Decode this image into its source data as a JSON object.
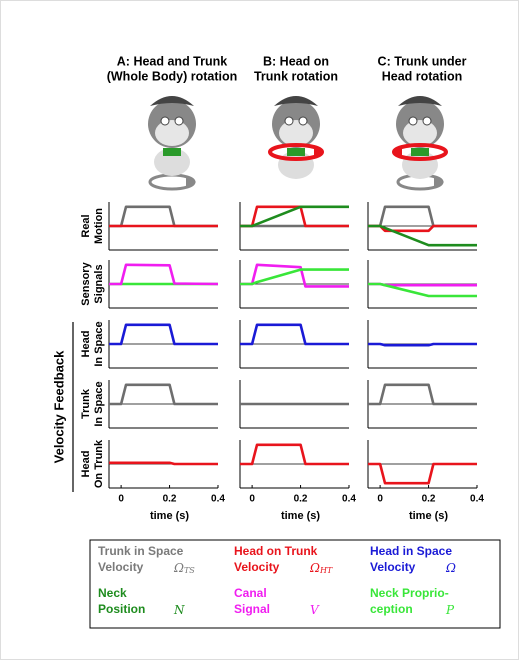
{
  "column_titles": [
    [
      "A: Head and Trunk",
      "(Whole Body) rotation"
    ],
    [
      "B: Head on",
      "Trunk rotation"
    ],
    [
      "C: Trunk under",
      "Head rotation"
    ]
  ],
  "row_labels": [
    [
      "Real",
      "Motion"
    ],
    [
      "Sensory",
      "Signals"
    ],
    [
      "Head",
      "In Space"
    ],
    [
      "Trunk",
      "In Space"
    ],
    [
      "Head",
      "On Trunk"
    ]
  ],
  "group_label": "Velocity Feedback",
  "chart_data": [
    {
      "type": "line",
      "x": [
        -0.05,
        0,
        0.02,
        0.2,
        0.22,
        0.4
      ],
      "xlim": [
        -0.05,
        0.4
      ],
      "ylim": [
        -1,
        1
      ],
      "series": [
        {
          "color": "#6e6e6e",
          "values": [
            0,
            0,
            0.8,
            0.8,
            0,
            0
          ]
        },
        {
          "color": "#e8141c",
          "values": [
            0,
            0,
            0,
            0,
            0,
            0
          ]
        }
      ]
    },
    {
      "type": "line",
      "x": [
        -0.05,
        0,
        0.02,
        0.2,
        0.22,
        0.4
      ],
      "xlim": [
        -0.05,
        0.4
      ],
      "ylim": [
        -1,
        1
      ],
      "series": [
        {
          "color": "#6e6e6e",
          "values": [
            0,
            0,
            0,
            0,
            0,
            0
          ]
        },
        {
          "color": "#e8141c",
          "values": [
            0,
            0,
            0.8,
            0.8,
            0,
            0
          ]
        },
        {
          "color": "#1e8c1e",
          "values": [
            0,
            0,
            0.08,
            0.8,
            0.8,
            0.8
          ]
        }
      ]
    },
    {
      "type": "line",
      "x": [
        -0.05,
        0,
        0.02,
        0.2,
        0.22,
        0.4
      ],
      "xlim": [
        -0.05,
        0.4
      ],
      "ylim": [
        -1,
        1
      ],
      "series": [
        {
          "color": "#6e6e6e",
          "values": [
            0,
            0,
            0.8,
            0.8,
            0,
            0
          ]
        },
        {
          "color": "#e8141c",
          "values": [
            0,
            0,
            -0.2,
            -0.2,
            0,
            0
          ]
        },
        {
          "color": "#1e8c1e",
          "values": [
            0,
            0,
            -0.08,
            -0.8,
            -0.8,
            -0.8
          ]
        }
      ]
    },
    {
      "type": "line",
      "x": [
        -0.05,
        0,
        0.02,
        0.2,
        0.22,
        0.4
      ],
      "xlim": [
        -0.05,
        0.4
      ],
      "ylim": [
        -1,
        1
      ],
      "series": [
        {
          "color": "#39e639",
          "values": [
            0,
            0,
            0,
            0,
            0,
            0
          ]
        },
        {
          "color": "#f01ef0",
          "values": [
            0,
            0,
            0.8,
            0.78,
            0.02,
            0
          ]
        }
      ]
    },
    {
      "type": "line",
      "x": [
        -0.05,
        0,
        0.02,
        0.2,
        0.22,
        0.4
      ],
      "xlim": [
        -0.05,
        0.4
      ],
      "ylim": [
        -1,
        1
      ],
      "series": [
        {
          "color": "#f01ef0",
          "values": [
            0,
            0,
            0.8,
            0.7,
            -0.1,
            -0.1
          ]
        },
        {
          "color": "#39e639",
          "values": [
            0,
            0,
            0.08,
            0.6,
            0.6,
            0.6
          ]
        }
      ]
    },
    {
      "type": "line",
      "x": [
        -0.05,
        0,
        0.02,
        0.2,
        0.22,
        0.4
      ],
      "xlim": [
        -0.05,
        0.4
      ],
      "ylim": [
        -1,
        1
      ],
      "series": [
        {
          "color": "#f01ef0",
          "values": [
            0,
            0,
            -0.05,
            -0.05,
            -0.05,
            -0.05
          ]
        },
        {
          "color": "#39e639",
          "values": [
            0,
            0,
            -0.05,
            -0.5,
            -0.5,
            -0.5
          ]
        }
      ]
    },
    {
      "type": "line",
      "x": [
        -0.05,
        0,
        0.02,
        0.2,
        0.22,
        0.4
      ],
      "xlim": [
        -0.05,
        0.4
      ],
      "ylim": [
        -1,
        1
      ],
      "series": [
        {
          "color": "#1a1ad6",
          "values": [
            0,
            0,
            0.8,
            0.8,
            0,
            0
          ]
        }
      ]
    },
    {
      "type": "line",
      "x": [
        -0.05,
        0,
        0.02,
        0.2,
        0.22,
        0.4
      ],
      "xlim": [
        -0.05,
        0.4
      ],
      "ylim": [
        -1,
        1
      ],
      "series": [
        {
          "color": "#1a1ad6",
          "values": [
            0,
            0,
            0.8,
            0.8,
            0,
            0
          ]
        }
      ]
    },
    {
      "type": "line",
      "x": [
        -0.05,
        0,
        0.02,
        0.2,
        0.22,
        0.4
      ],
      "xlim": [
        -0.05,
        0.4
      ],
      "ylim": [
        -1,
        1
      ],
      "series": [
        {
          "color": "#1a1ad6",
          "values": [
            0,
            0,
            -0.05,
            -0.05,
            0,
            0
          ]
        }
      ]
    },
    {
      "type": "line",
      "x": [
        -0.05,
        0,
        0.02,
        0.2,
        0.22,
        0.4
      ],
      "xlim": [
        -0.05,
        0.4
      ],
      "ylim": [
        -1,
        1
      ],
      "series": [
        {
          "color": "#6e6e6e",
          "values": [
            0,
            0,
            0.8,
            0.8,
            0,
            0
          ]
        }
      ]
    },
    {
      "type": "line",
      "x": [
        -0.05,
        0,
        0.02,
        0.2,
        0.22,
        0.4
      ],
      "xlim": [
        -0.05,
        0.4
      ],
      "ylim": [
        -1,
        1
      ],
      "series": [
        {
          "color": "#6e6e6e",
          "values": [
            0,
            0,
            0,
            0,
            0,
            0
          ]
        }
      ]
    },
    {
      "type": "line",
      "x": [
        -0.05,
        0,
        0.02,
        0.2,
        0.22,
        0.4
      ],
      "xlim": [
        -0.05,
        0.4
      ],
      "ylim": [
        -1,
        1
      ],
      "series": [
        {
          "color": "#6e6e6e",
          "values": [
            0,
            0,
            0.8,
            0.8,
            0,
            0
          ]
        }
      ]
    },
    {
      "type": "line",
      "x": [
        -0.05,
        0,
        0.02,
        0.2,
        0.22,
        0.4
      ],
      "xlim": [
        -0.05,
        0.4
      ],
      "ylim": [
        -1,
        1
      ],
      "xticks": [
        0,
        0.2,
        0.4
      ],
      "xlabel": "time (s)",
      "series": [
        {
          "color": "#e8141c",
          "values": [
            0.05,
            0.05,
            0.05,
            0.05,
            0,
            0
          ]
        }
      ]
    },
    {
      "type": "line",
      "x": [
        -0.05,
        0,
        0.02,
        0.2,
        0.22,
        0.4
      ],
      "xlim": [
        -0.05,
        0.4
      ],
      "ylim": [
        -1,
        1
      ],
      "xticks": [
        0,
        0.2,
        0.4
      ],
      "xlabel": "time (s)",
      "series": [
        {
          "color": "#e8141c",
          "values": [
            0,
            0,
            0.8,
            0.8,
            0,
            0
          ]
        }
      ]
    },
    {
      "type": "line",
      "x": [
        -0.05,
        0,
        0.02,
        0.2,
        0.22,
        0.4
      ],
      "xlim": [
        -0.05,
        0.4
      ],
      "ylim": [
        -1,
        1
      ],
      "xticks": [
        0,
        0.2,
        0.4
      ],
      "xlabel": "time (s)",
      "series": [
        {
          "color": "#e8141c",
          "values": [
            0,
            0,
            -0.8,
            -0.8,
            0,
            0
          ]
        }
      ]
    }
  ],
  "legend": [
    {
      "lines": [
        "Trunk in Space",
        "Velocity"
      ],
      "symbol": "Ω",
      "sub": "TS",
      "color": "#7a7a7a"
    },
    {
      "lines": [
        "Head on Trunk",
        "Velocity"
      ],
      "symbol": "Ω",
      "sub": "HT",
      "color": "#e8141c"
    },
    {
      "lines": [
        "Head in Space",
        "Velocity"
      ],
      "symbol": "Ω",
      "color": "#1a1ad6"
    },
    {
      "lines": [
        "Neck",
        "Position"
      ],
      "symbol": "N",
      "color": "#1e8c1e"
    },
    {
      "lines": [
        "Canal",
        "Signal"
      ],
      "symbol": "V",
      "color": "#f01ef0"
    },
    {
      "lines": [
        "Neck Proprio-",
        "ception"
      ],
      "symbol": "P",
      "color": "#39e639"
    }
  ]
}
